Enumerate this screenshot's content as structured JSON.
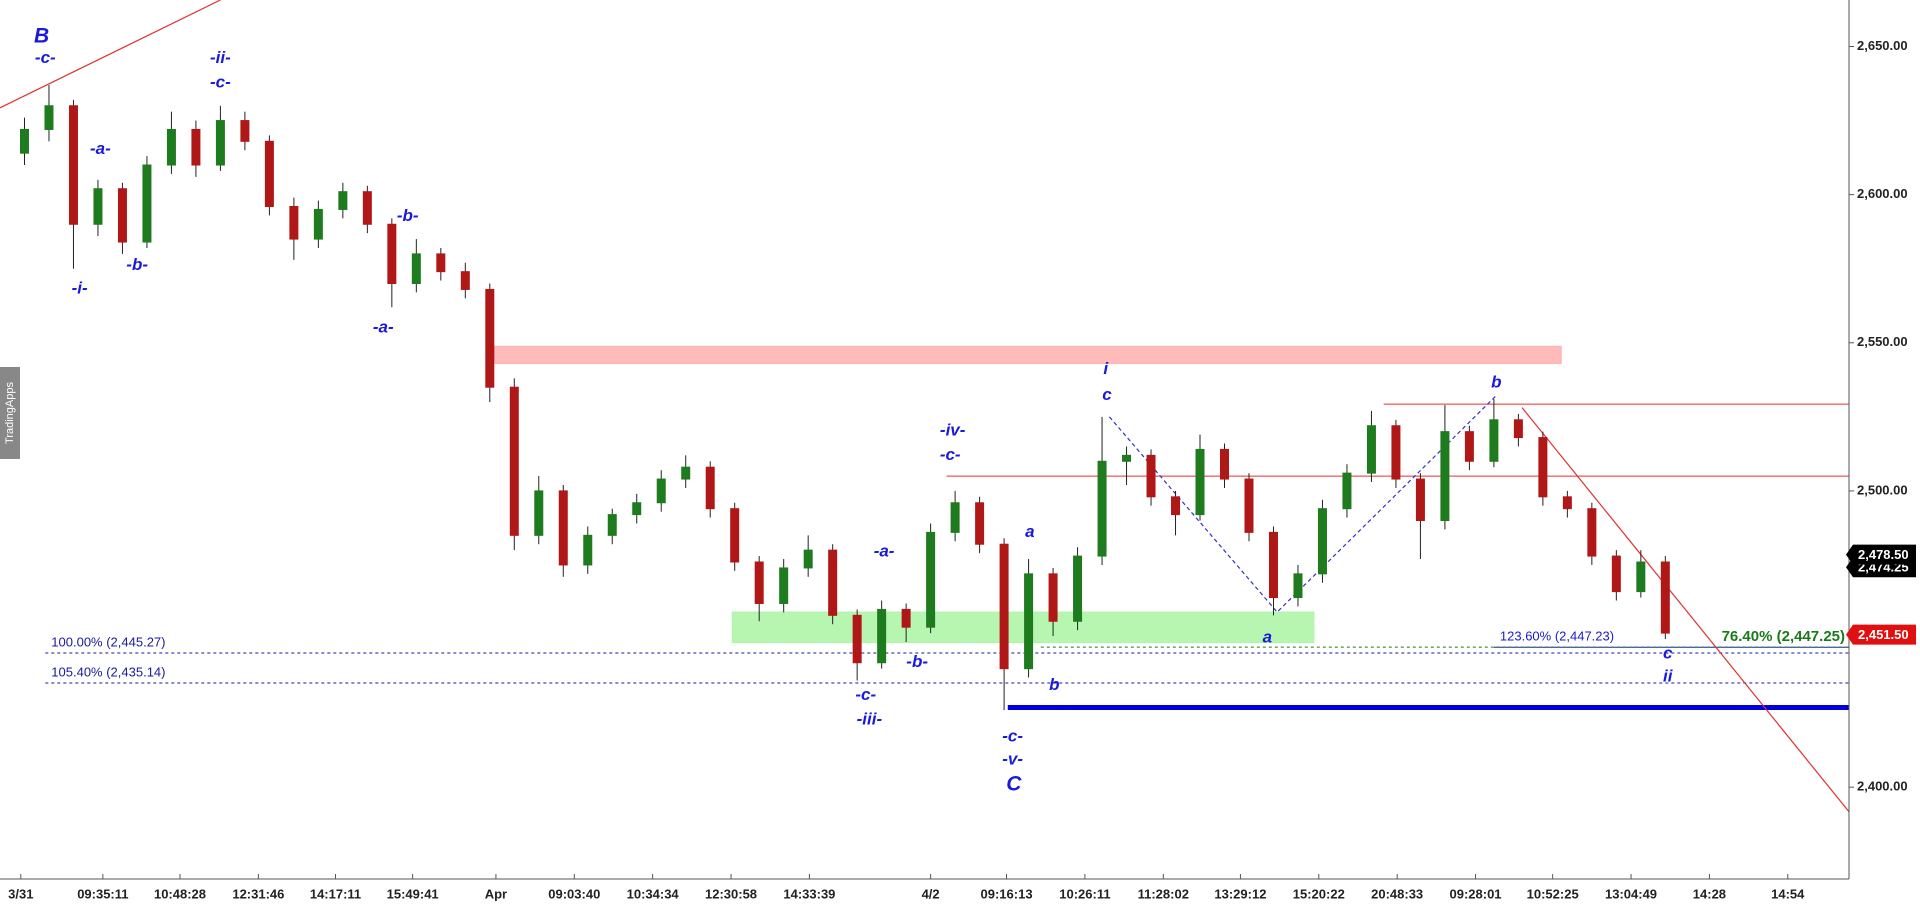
{
  "chart_data": {
    "type": "candlestick",
    "brand": "TradingApps",
    "xlim": [
      -1,
      74.5
    ],
    "ylim": [
      2369,
      2665.7
    ],
    "yticks": [
      {
        "value": 2400,
        "label": "2,400.00"
      },
      {
        "value": 2450,
        "label": "2,450.00"
      },
      {
        "value": 2500,
        "label": "2,500.00"
      },
      {
        "value": 2550,
        "label": "2,550.00"
      },
      {
        "value": 2600,
        "label": "2,600.00"
      },
      {
        "value": 2650,
        "label": "2,650.00"
      }
    ],
    "xticks": [
      {
        "value": -0.15,
        "label": "3/31"
      },
      {
        "value": 3.2,
        "label": "09:35:11"
      },
      {
        "value": 6.35,
        "label": "10:48:28"
      },
      {
        "value": 9.55,
        "label": "12:31:46"
      },
      {
        "value": 12.7,
        "label": "14:17:11"
      },
      {
        "value": 15.85,
        "label": "15:49:41"
      },
      {
        "value": 19.25,
        "label": "Apr"
      },
      {
        "value": 22.45,
        "label": "09:03:40"
      },
      {
        "value": 25.65,
        "label": "10:34:34"
      },
      {
        "value": 28.85,
        "label": "12:30:58"
      },
      {
        "value": 32.05,
        "label": "14:33:39"
      },
      {
        "value": 37,
        "label": "4/2"
      },
      {
        "value": 40.1,
        "label": "09:16:13"
      },
      {
        "value": 43.3,
        "label": "10:26:11"
      },
      {
        "value": 46.5,
        "label": "11:28:02"
      },
      {
        "value": 49.65,
        "label": "13:29:12"
      },
      {
        "value": 52.85,
        "label": "15:20:22"
      },
      {
        "value": 56.05,
        "label": "20:48:33"
      },
      {
        "value": 59.25,
        "label": "09:28:01"
      },
      {
        "value": 62.4,
        "label": "10:52:25"
      },
      {
        "value": 65.6,
        "label": "13:04:49"
      },
      {
        "value": 68.8,
        "label": "14:28"
      },
      {
        "value": 72,
        "label": "14:54"
      }
    ],
    "up_color": "#1e7b1e",
    "down_color": "#b01818",
    "open": [
      2614,
      2622,
      2630,
      2590,
      2602,
      2584,
      2610,
      2622,
      2610,
      2625,
      2618,
      2596,
      2585,
      2595,
      2601,
      2590,
      2570,
      2580,
      2574,
      2568,
      2535,
      2485,
      2500,
      2475,
      2485,
      2492,
      2496,
      2504,
      2508,
      2494,
      2476,
      2462,
      2474,
      2480,
      2458,
      2442,
      2460,
      2454,
      2486,
      2496,
      2482,
      2440,
      2472,
      2456,
      2478,
      2510,
      2512,
      2498,
      2492,
      2514,
      2504,
      2486,
      2464,
      2472,
      2494,
      2506,
      2522,
      2504,
      2490,
      2520,
      2510,
      2524,
      2518,
      2498,
      2494,
      2478,
      2466,
      2476
    ],
    "high": [
      2626,
      2637,
      2632,
      2605,
      2604,
      2613,
      2628,
      2625,
      2630,
      2628,
      2620,
      2599,
      2598,
      2604,
      2603,
      2592,
      2585,
      2582,
      2577,
      2570,
      2538,
      2505,
      2502,
      2488,
      2494,
      2499,
      2507,
      2512,
      2510,
      2496,
      2478,
      2477,
      2485,
      2482,
      2460,
      2463,
      2462,
      2489,
      2500,
      2498,
      2484,
      2477,
      2474,
      2481,
      2525,
      2515,
      2514,
      2500,
      2519,
      2516,
      2506,
      2488,
      2475,
      2497,
      2509,
      2527,
      2524,
      2506,
      2529,
      2522,
      2531,
      2526,
      2520,
      2500,
      2496,
      2480,
      2480,
      2478
    ],
    "low": [
      2610,
      2618,
      2575,
      2586,
      2580,
      2582,
      2607,
      2606,
      2608,
      2615,
      2593,
      2578,
      2582,
      2592,
      2587,
      2562,
      2567,
      2571,
      2565,
      2530,
      2480,
      2482,
      2471,
      2472,
      2482,
      2489,
      2493,
      2501,
      2491,
      2473,
      2456,
      2459,
      2471,
      2455,
      2436,
      2440,
      2449,
      2452,
      2483,
      2479,
      2426,
      2437,
      2451,
      2453,
      2475,
      2502,
      2495,
      2485,
      2490,
      2501,
      2483,
      2458,
      2461,
      2469,
      2491,
      2503,
      2501,
      2477,
      2487,
      2507,
      2508,
      2515,
      2495,
      2491,
      2475,
      2463,
      2464,
      2450
    ],
    "close": [
      2622,
      2630,
      2590,
      2602,
      2584,
      2610,
      2622,
      2610,
      2625,
      2618,
      2596,
      2585,
      2595,
      2601,
      2590,
      2570,
      2580,
      2574,
      2568,
      2535,
      2485,
      2500,
      2475,
      2485,
      2492,
      2496,
      2504,
      2508,
      2494,
      2476,
      2462,
      2474,
      2480,
      2458,
      2442,
      2460,
      2454,
      2486,
      2496,
      2482,
      2440,
      2472,
      2456,
      2478,
      2510,
      2512,
      2498,
      2492,
      2514,
      2504,
      2486,
      2464,
      2472,
      2494,
      2506,
      2522,
      2504,
      2490,
      2520,
      2510,
      2524,
      2518,
      2498,
      2494,
      2478,
      2466,
      2476,
      2452
    ],
    "zones": [
      {
        "xlim": [
          19,
          62.75
        ],
        "ylim": [
          2543.0,
          2548.8
        ],
        "color": "#ffb3b3"
      },
      {
        "xlim": [
          28.9,
          52.65
        ],
        "ylim": [
          2448.8,
          2459.1
        ],
        "color": "#aef5a8"
      }
    ],
    "levels": [
      {
        "value": 2529.3,
        "from": 55.5,
        "color": "#e03030",
        "width": 1
      },
      {
        "value": 2505.0,
        "from": 37.65,
        "color": "#e03030",
        "width": 1
      },
      {
        "value": 2426.9,
        "from": 40.15,
        "color": "#0000dd",
        "width": 5
      }
    ],
    "fib_levels": [
      {
        "value": 2445.27,
        "label": "100.00% (2,445.27)",
        "from": 0.85,
        "color": "#1a1a9b",
        "dash": true,
        "align": "start"
      },
      {
        "value": 2435.14,
        "label": "105.40% (2,435.14)",
        "from": 0.85,
        "color": "#1a1a9b",
        "dash": true,
        "align": "start"
      },
      {
        "value": 2447.23,
        "label": "123.60% (2,447.23)",
        "from": 60,
        "color": "#1a1acc",
        "dash": false,
        "align": "start"
      },
      {
        "value": 2447.25,
        "label": "76.40% (2,447.25)",
        "from": 41.5,
        "color": "#1a7a1a",
        "dash": true,
        "align": "end"
      }
    ],
    "trendlines": [
      {
        "x": [
          -1,
          8
        ],
        "y": [
          2629.3,
          2665.7
        ],
        "color": "#e03030",
        "dash": false
      },
      {
        "x": [
          61.15,
          74.5
        ],
        "y": [
          2528.1,
          2391.7
        ],
        "color": "#e03030",
        "dash": false
      },
      {
        "x": [
          44.3,
          51.15,
          60.1
        ],
        "y": [
          2525,
          2459.1,
          2532.2
        ],
        "color": "#3030d0",
        "dash": true
      }
    ],
    "annotations": [
      {
        "text": "B",
        "x": 0.7,
        "y": 2653.3,
        "size": "large"
      },
      {
        "text": "-c-",
        "x": 0.85,
        "y": 2645.9,
        "size": "small"
      },
      {
        "text": "-ii-",
        "x": 8.0,
        "y": 2645.9,
        "size": "small"
      },
      {
        "text": "-c-",
        "x": 8.0,
        "y": 2637.6,
        "size": "small"
      },
      {
        "text": "-a-",
        "x": 3.1,
        "y": 2615.3,
        "size": "small"
      },
      {
        "text": "-b-",
        "x": 4.6,
        "y": 2576.0,
        "size": "small"
      },
      {
        "text": "-i-",
        "x": 2.25,
        "y": 2568.2,
        "size": "small"
      },
      {
        "text": "-b-",
        "x": 15.65,
        "y": 2592.6,
        "size": "small"
      },
      {
        "text": "-a-",
        "x": 14.65,
        "y": 2555.0,
        "size": "small"
      },
      {
        "text": "-iv-",
        "x": 37.9,
        "y": 2520.2,
        "size": "small"
      },
      {
        "text": "-c-",
        "x": 37.8,
        "y": 2512.0,
        "size": "small"
      },
      {
        "text": "-a-",
        "x": 35.1,
        "y": 2479.3,
        "size": "small"
      },
      {
        "text": "-b-",
        "x": 36.45,
        "y": 2442.1,
        "size": "small"
      },
      {
        "text": "-c-",
        "x": 34.35,
        "y": 2431.0,
        "size": "small"
      },
      {
        "text": "-iii-",
        "x": 34.5,
        "y": 2422.7,
        "size": "small"
      },
      {
        "text": "a",
        "x": 41.05,
        "y": 2485.9,
        "size": "small"
      },
      {
        "text": "b",
        "x": 42.05,
        "y": 2434.3,
        "size": "small"
      },
      {
        "text": "-c-",
        "x": 40.35,
        "y": 2416.9,
        "size": "small"
      },
      {
        "text": "-v-",
        "x": 40.35,
        "y": 2409.1,
        "size": "small"
      },
      {
        "text": "C",
        "x": 40.4,
        "y": 2400.8,
        "size": "large"
      },
      {
        "text": "i",
        "x": 44.15,
        "y": 2540.9,
        "size": "small"
      },
      {
        "text": "c",
        "x": 44.2,
        "y": 2532.2,
        "size": "small"
      },
      {
        "text": "a",
        "x": 50.75,
        "y": 2450.4,
        "size": "small"
      },
      {
        "text": "b",
        "x": 60.1,
        "y": 2536.4,
        "size": "small"
      },
      {
        "text": "c",
        "x": 67.1,
        "y": 2445.0,
        "size": "small"
      },
      {
        "text": "ii",
        "x": 67.1,
        "y": 2437.2,
        "size": "small"
      }
    ],
    "price_tags": [
      {
        "value": 2474.25,
        "label": "2,474.25",
        "color": "#000000"
      },
      {
        "value": 2478.5,
        "label": "2,478.50",
        "color": "#000000"
      },
      {
        "value": 2451.5,
        "label": "2,451.50",
        "color": "#e01010"
      }
    ]
  }
}
